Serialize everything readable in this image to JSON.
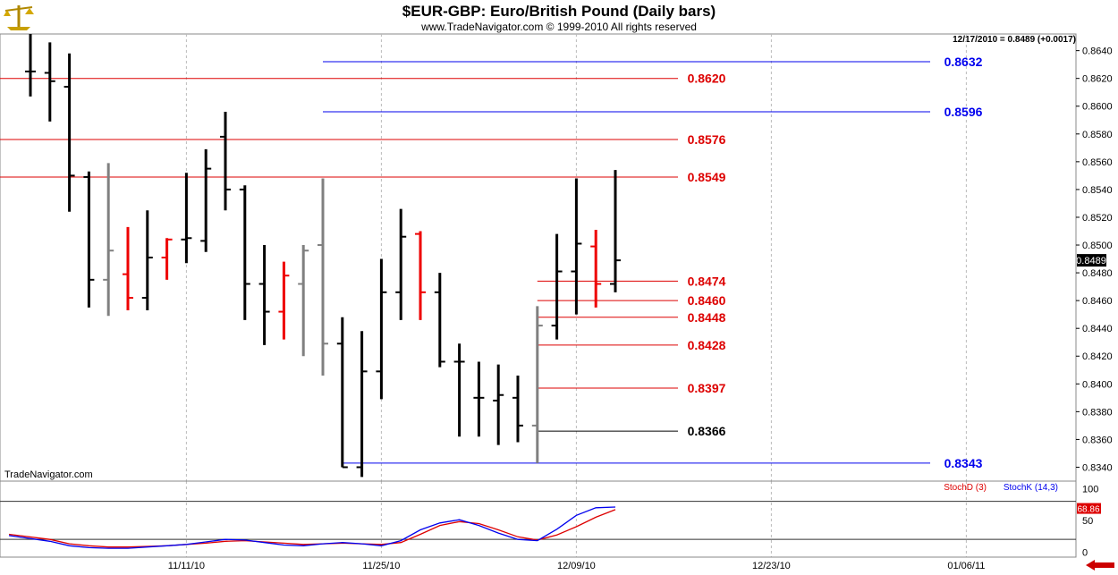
{
  "header": {
    "title": "$EUR-GBP:  Euro/British Pound  (Daily bars)",
    "subtitle": "www.TradeNavigator.com © 1999-2010 All rights reserved",
    "quote_info": "12/17/2010 = 0.8489 (+0.0017)",
    "watermark": "TradeNavigator.com",
    "logo_icon": "scales-logo-icon",
    "nav_icon": "left-arrow-icon"
  },
  "chart_data": [
    {
      "type": "ohlc",
      "title": "$EUR-GBP:  Euro/British Pound  (Daily bars)",
      "x_ticks": [
        "11/11/10",
        "11/25/10",
        "12/09/10",
        "12/23/10",
        "01/06/11"
      ],
      "y_ticks": [
        "0.8640",
        "0.8620",
        "0.8600",
        "0.8580",
        "0.8560",
        "0.8540",
        "0.8520",
        "0.8500",
        "0.8480",
        "0.8460",
        "0.8440",
        "0.8420",
        "0.8400",
        "0.8380",
        "0.8360",
        "0.8340"
      ],
      "ylim": [
        0.833,
        0.8652
      ],
      "last_price": "0.8489",
      "bars": [
        {
          "d": "11/01/10",
          "o": 0.8625,
          "h": 0.8652,
          "l": 0.8607,
          "c": 0.8625,
          "color": "black"
        },
        {
          "d": "11/02/10",
          "o": 0.8624,
          "h": 0.8646,
          "l": 0.8589,
          "c": 0.8618,
          "color": "black"
        },
        {
          "d": "11/03/10",
          "o": 0.8614,
          "h": 0.8638,
          "l": 0.8524,
          "c": 0.855,
          "color": "black"
        },
        {
          "d": "11/04/10",
          "o": 0.8549,
          "h": 0.8553,
          "l": 0.8455,
          "c": 0.8475,
          "color": "black"
        },
        {
          "d": "11/05/10",
          "o": 0.8475,
          "h": 0.8559,
          "l": 0.8449,
          "c": 0.8496,
          "color": "gray"
        },
        {
          "d": "11/08/10",
          "o": 0.8479,
          "h": 0.8513,
          "l": 0.8453,
          "c": 0.8462,
          "color": "red"
        },
        {
          "d": "11/09/10",
          "o": 0.8462,
          "h": 0.8525,
          "l": 0.8453,
          "c": 0.8491,
          "color": "black"
        },
        {
          "d": "11/10/10",
          "o": 0.8491,
          "h": 0.8505,
          "l": 0.8475,
          "c": 0.8504,
          "color": "red"
        },
        {
          "d": "11/11/10",
          "o": 0.8504,
          "h": 0.8552,
          "l": 0.8487,
          "c": 0.8505,
          "color": "black"
        },
        {
          "d": "11/12/10",
          "o": 0.8503,
          "h": 0.8569,
          "l": 0.8495,
          "c": 0.8555,
          "color": "black"
        },
        {
          "d": "11/15/10",
          "o": 0.8578,
          "h": 0.8596,
          "l": 0.8525,
          "c": 0.854,
          "color": "black"
        },
        {
          "d": "11/16/10",
          "o": 0.854,
          "h": 0.8543,
          "l": 0.8446,
          "c": 0.8472,
          "color": "black"
        },
        {
          "d": "11/17/10",
          "o": 0.8472,
          "h": 0.85,
          "l": 0.8428,
          "c": 0.8452,
          "color": "black"
        },
        {
          "d": "11/18/10",
          "o": 0.8452,
          "h": 0.8488,
          "l": 0.8432,
          "c": 0.8478,
          "color": "red"
        },
        {
          "d": "11/19/10",
          "o": 0.8472,
          "h": 0.85,
          "l": 0.842,
          "c": 0.8496,
          "color": "gray"
        },
        {
          "d": "11/22/10",
          "o": 0.85,
          "h": 0.8548,
          "l": 0.8406,
          "c": 0.8429,
          "color": "gray"
        },
        {
          "d": "11/23/10",
          "o": 0.8429,
          "h": 0.8448,
          "l": 0.834,
          "c": 0.834,
          "color": "black"
        },
        {
          "d": "11/24/10",
          "o": 0.834,
          "h": 0.8438,
          "l": 0.8333,
          "c": 0.8409,
          "color": "black"
        },
        {
          "d": "11/25/10",
          "o": 0.8409,
          "h": 0.849,
          "l": 0.8389,
          "c": 0.8466,
          "color": "black"
        },
        {
          "d": "11/26/10",
          "o": 0.8466,
          "h": 0.8526,
          "l": 0.8446,
          "c": 0.8506,
          "color": "black"
        },
        {
          "d": "11/29/10",
          "o": 0.8508,
          "h": 0.851,
          "l": 0.8446,
          "c": 0.8466,
          "color": "red"
        },
        {
          "d": "11/30/10",
          "o": 0.8466,
          "h": 0.848,
          "l": 0.8412,
          "c": 0.8416,
          "color": "black"
        },
        {
          "d": "12/01/10",
          "o": 0.8416,
          "h": 0.8429,
          "l": 0.8362,
          "c": 0.8416,
          "color": "black"
        },
        {
          "d": "12/02/10",
          "o": 0.839,
          "h": 0.8416,
          "l": 0.8362,
          "c": 0.839,
          "color": "black"
        },
        {
          "d": "12/03/10",
          "o": 0.8388,
          "h": 0.8414,
          "l": 0.8356,
          "c": 0.8392,
          "color": "black"
        },
        {
          "d": "12/06/10",
          "o": 0.839,
          "h": 0.8406,
          "l": 0.8358,
          "c": 0.837,
          "color": "black"
        },
        {
          "d": "12/07/10",
          "o": 0.837,
          "h": 0.8456,
          "l": 0.8343,
          "c": 0.8442,
          "color": "gray"
        },
        {
          "d": "12/08/10",
          "o": 0.8442,
          "h": 0.8508,
          "l": 0.8432,
          "c": 0.8481,
          "color": "black"
        },
        {
          "d": "12/09/10",
          "o": 0.8481,
          "h": 0.8548,
          "l": 0.845,
          "c": 0.8501,
          "color": "black"
        },
        {
          "d": "12/10/10",
          "o": 0.8499,
          "h": 0.8511,
          "l": 0.8455,
          "c": 0.8472,
          "color": "red"
        },
        {
          "d": "12/13/10",
          "o": 0.8472,
          "h": 0.8554,
          "l": 0.8466,
          "c": 0.8489,
          "color": "black"
        }
      ],
      "levels": [
        {
          "label": "0.8632",
          "value": 0.8632,
          "color": "#0000ee",
          "start": "11/22/10"
        },
        {
          "label": "0.8620",
          "value": 0.862,
          "color": "#dd0000",
          "start": "10/29/10"
        },
        {
          "label": "0.8596",
          "value": 0.8596,
          "color": "#0000ee",
          "start": "11/22/10"
        },
        {
          "label": "0.8576",
          "value": 0.8576,
          "color": "#dd0000",
          "start": "10/29/10"
        },
        {
          "label": "0.8549",
          "value": 0.8549,
          "color": "#dd0000",
          "start": "10/29/10"
        },
        {
          "label": "0.8474",
          "value": 0.8474,
          "color": "#dd0000",
          "start": "12/07/10"
        },
        {
          "label": "0.8460",
          "value": 0.846,
          "color": "#dd0000",
          "start": "12/07/10"
        },
        {
          "label": "0.8448",
          "value": 0.8448,
          "color": "#dd0000",
          "start": "12/07/10"
        },
        {
          "label": "0.8428",
          "value": 0.8428,
          "color": "#dd0000",
          "start": "12/07/10"
        },
        {
          "label": "0.8397",
          "value": 0.8397,
          "color": "#dd0000",
          "start": "12/07/10"
        },
        {
          "label": "0.8366",
          "value": 0.8366,
          "color": "#000000",
          "start": "12/07/10"
        },
        {
          "label": "0.8343",
          "value": 0.8343,
          "color": "#0000ee",
          "start": "11/23/10"
        }
      ]
    },
    {
      "type": "line",
      "y_ticks": [
        "100",
        "50",
        "0"
      ],
      "ylim": [
        -8,
        112
      ],
      "reference_lines": [
        80,
        20
      ],
      "last_value": "68.86",
      "series": [
        {
          "name": "StochD (3)",
          "color": "#dd0000",
          "values": [
            28,
            20,
            13,
            10,
            8,
            8,
            9,
            10,
            12,
            14,
            17,
            18,
            16,
            14,
            12,
            13,
            14,
            13,
            12,
            15,
            28,
            42,
            48,
            45,
            35,
            24,
            19,
            27,
            40,
            55,
            67
          ]
        },
        {
          "name": "StochK (14,3)",
          "color": "#0000ee",
          "values": [
            26,
            17,
            10,
            7,
            6,
            6,
            8,
            10,
            12,
            16,
            20,
            19,
            15,
            11,
            10,
            13,
            15,
            13,
            10,
            18,
            35,
            46,
            51,
            42,
            30,
            20,
            18,
            36,
            58,
            70,
            71
          ]
        }
      ]
    }
  ]
}
